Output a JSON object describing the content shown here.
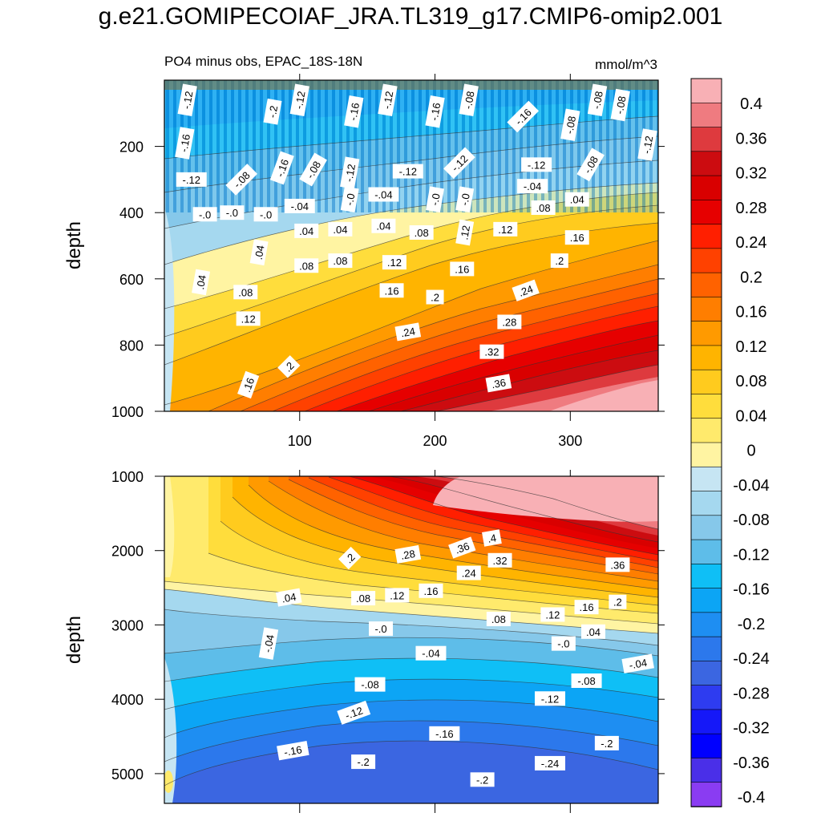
{
  "title": "g.e21.GOMIPECOIAF_JRA.TL319_g17.CMIP6-omip2.001",
  "chart_data": [
    {
      "type": "heatmap",
      "panel": "upper",
      "title": "PO4 minus obs, EPAC_18S-18N",
      "units": "mmol/m^3",
      "xlabel": "",
      "ylabel": "depth",
      "xlim": [
        0,
        365
      ],
      "ylim": [
        1000,
        0
      ],
      "xticks": [
        100,
        200,
        300
      ],
      "yticks": [
        200,
        400,
        600,
        800,
        1000
      ],
      "contour_labels": [
        {
          "x": 17,
          "y": 60,
          "t": "-.12",
          "r": 80
        },
        {
          "x": 80,
          "y": 95,
          "t": "-.2",
          "r": 80
        },
        {
          "x": 100,
          "y": 60,
          "t": "-.12",
          "r": 80
        },
        {
          "x": 140,
          "y": 95,
          "t": "-.16",
          "r": 80
        },
        {
          "x": 165,
          "y": 60,
          "t": "-.12",
          "r": 80
        },
        {
          "x": 200,
          "y": 95,
          "t": "-.16",
          "r": 80
        },
        {
          "x": 225,
          "y": 60,
          "t": "-.08",
          "r": 80
        },
        {
          "x": 265,
          "y": 110,
          "t": "-.16",
          "r": 45
        },
        {
          "x": 300,
          "y": 135,
          "t": "-.08",
          "r": 80
        },
        {
          "x": 320,
          "y": 60,
          "t": "-.08",
          "r": 80
        },
        {
          "x": 337,
          "y": 75,
          "t": "-.08",
          "r": 80
        },
        {
          "x": 357,
          "y": 195,
          "t": "-.12",
          "r": 80
        },
        {
          "x": 15,
          "y": 190,
          "t": "-.16",
          "r": 80
        },
        {
          "x": 20,
          "y": 300,
          "t": "-.12",
          "r": 0
        },
        {
          "x": 57,
          "y": 300,
          "t": "-.08",
          "r": 45
        },
        {
          "x": 87,
          "y": 265,
          "t": "-.16",
          "r": 70
        },
        {
          "x": 110,
          "y": 270,
          "t": "-.08",
          "r": 60
        },
        {
          "x": 137,
          "y": 280,
          "t": "-.12",
          "r": 80
        },
        {
          "x": 180,
          "y": 275,
          "t": "-.12",
          "r": 0
        },
        {
          "x": 218,
          "y": 250,
          "t": "-.12",
          "r": 45
        },
        {
          "x": 275,
          "y": 255,
          "t": "-.12",
          "r": 0
        },
        {
          "x": 315,
          "y": 255,
          "t": "-.08",
          "r": 60
        },
        {
          "x": 272,
          "y": 320,
          "t": "-.04",
          "r": 0
        },
        {
          "x": 30,
          "y": 405,
          "t": "-.0",
          "r": 0
        },
        {
          "x": 50,
          "y": 400,
          "t": "-.0",
          "r": 0
        },
        {
          "x": 75,
          "y": 405,
          "t": "-.0",
          "r": 0
        },
        {
          "x": 100,
          "y": 380,
          "t": "-.04",
          "r": 0
        },
        {
          "x": 137,
          "y": 360,
          "t": "-.0",
          "r": 80
        },
        {
          "x": 162,
          "y": 345,
          "t": "-.04",
          "r": 0
        },
        {
          "x": 200,
          "y": 360,
          "t": "-.0",
          "r": 80
        },
        {
          "x": 222,
          "y": 360,
          "t": "-.0",
          "r": 80
        },
        {
          "x": 280,
          "y": 385,
          "t": ".08",
          "r": 0
        },
        {
          "x": 305,
          "y": 360,
          "t": ".04",
          "r": 0
        },
        {
          "x": 105,
          "y": 455,
          "t": ".04",
          "r": 0
        },
        {
          "x": 130,
          "y": 450,
          "t": ".04",
          "r": 0
        },
        {
          "x": 162,
          "y": 440,
          "t": ".04",
          "r": 0
        },
        {
          "x": 190,
          "y": 460,
          "t": ".08",
          "r": 0
        },
        {
          "x": 222,
          "y": 460,
          "t": ".12",
          "r": 80
        },
        {
          "x": 252,
          "y": 450,
          "t": ".12",
          "r": 0
        },
        {
          "x": 305,
          "y": 475,
          "t": ".16",
          "r": 0
        },
        {
          "x": 70,
          "y": 520,
          "t": ".04",
          "r": 80
        },
        {
          "x": 105,
          "y": 560,
          "t": ".08",
          "r": 0
        },
        {
          "x": 130,
          "y": 545,
          "t": ".08",
          "r": 0
        },
        {
          "x": 170,
          "y": 550,
          "t": ".12",
          "r": 0
        },
        {
          "x": 220,
          "y": 570,
          "t": ".16",
          "r": 0
        },
        {
          "x": 292,
          "y": 545,
          "t": ".2",
          "r": 0
        },
        {
          "x": 27,
          "y": 610,
          "t": ".04",
          "r": 80
        },
        {
          "x": 60,
          "y": 640,
          "t": ".08",
          "r": 0
        },
        {
          "x": 168,
          "y": 635,
          "t": ".16",
          "r": 0
        },
        {
          "x": 200,
          "y": 655,
          "t": ".2",
          "r": 0
        },
        {
          "x": 267,
          "y": 635,
          "t": ".24",
          "r": 20
        },
        {
          "x": 62,
          "y": 720,
          "t": ".12",
          "r": 0
        },
        {
          "x": 180,
          "y": 760,
          "t": ".24",
          "r": 10
        },
        {
          "x": 255,
          "y": 730,
          "t": ".28",
          "r": 0
        },
        {
          "x": 242,
          "y": 820,
          "t": ".32",
          "r": 0
        },
        {
          "x": 92,
          "y": 865,
          "t": ".2",
          "r": 45
        },
        {
          "x": 62,
          "y": 920,
          "t": ".16",
          "r": 70
        },
        {
          "x": 247,
          "y": 915,
          "t": ".36",
          "r": 10
        }
      ]
    },
    {
      "type": "heatmap",
      "panel": "lower",
      "title": "",
      "units": "",
      "xlabel": "",
      "ylabel": "depth",
      "xlim": [
        0,
        365
      ],
      "ylim": [
        5400,
        1000
      ],
      "xticks": [
        100,
        200,
        300
      ],
      "yticks": [
        1000,
        2000,
        3000,
        4000,
        5000
      ],
      "contour_labels": [
        {
          "x": 137,
          "y": 2100,
          "t": ".2",
          "r": 45
        },
        {
          "x": 180,
          "y": 2050,
          "t": ".28",
          "r": 10
        },
        {
          "x": 220,
          "y": 1960,
          "t": ".36",
          "r": 20
        },
        {
          "x": 242,
          "y": 1830,
          "t": ".4",
          "r": 10
        },
        {
          "x": 248,
          "y": 2130,
          "t": ".32",
          "r": 0
        },
        {
          "x": 225,
          "y": 2300,
          "t": ".24",
          "r": 0
        },
        {
          "x": 335,
          "y": 2190,
          "t": ".36",
          "r": 0
        },
        {
          "x": 92,
          "y": 2630,
          "t": ".04",
          "r": 10
        },
        {
          "x": 147,
          "y": 2640,
          "t": ".08",
          "r": 0
        },
        {
          "x": 172,
          "y": 2600,
          "t": ".12",
          "r": 0
        },
        {
          "x": 197,
          "y": 2540,
          "t": ".16",
          "r": 0
        },
        {
          "x": 247,
          "y": 2920,
          "t": ".08",
          "r": 0
        },
        {
          "x": 287,
          "y": 2860,
          "t": ".12",
          "r": 0
        },
        {
          "x": 312,
          "y": 2760,
          "t": ".16",
          "r": 0
        },
        {
          "x": 335,
          "y": 2690,
          "t": ".2",
          "r": 0
        },
        {
          "x": 317,
          "y": 3090,
          "t": ".04",
          "r": 0
        },
        {
          "x": 160,
          "y": 3050,
          "t": "-.0",
          "r": 0
        },
        {
          "x": 295,
          "y": 3250,
          "t": "-.0",
          "r": 0
        },
        {
          "x": 77,
          "y": 3250,
          "t": "-.04",
          "r": 80
        },
        {
          "x": 197,
          "y": 3380,
          "t": "-.04",
          "r": 0
        },
        {
          "x": 350,
          "y": 3520,
          "t": "-.04",
          "r": 10
        },
        {
          "x": 152,
          "y": 3800,
          "t": "-.08",
          "r": 0
        },
        {
          "x": 312,
          "y": 3750,
          "t": "-.08",
          "r": 0
        },
        {
          "x": 140,
          "y": 4180,
          "t": "-.12",
          "r": 20
        },
        {
          "x": 285,
          "y": 3990,
          "t": "-.12",
          "r": 0
        },
        {
          "x": 207,
          "y": 4460,
          "t": "-.16",
          "r": 0
        },
        {
          "x": 95,
          "y": 4690,
          "t": "-.16",
          "r": 10
        },
        {
          "x": 147,
          "y": 4840,
          "t": "-.2",
          "r": 0
        },
        {
          "x": 327,
          "y": 4590,
          "t": "-.2",
          "r": 0
        },
        {
          "x": 285,
          "y": 4860,
          "t": "-.24",
          "r": 0
        },
        {
          "x": 235,
          "y": 5080,
          "t": "-.2",
          "r": 0
        }
      ]
    }
  ],
  "colorbar": {
    "levels": [
      "0.4",
      "0.36",
      "0.32",
      "0.28",
      "0.24",
      "0.2",
      "0.16",
      "0.12",
      "0.08",
      "0.04",
      "0",
      "-0.04",
      "-0.08",
      "-0.12",
      "-0.16",
      "-0.2",
      "-0.24",
      "-0.28",
      "-0.32",
      "-0.36",
      "-0.4"
    ],
    "colors": [
      "#f8b0b5",
      "#ef7b80",
      "#de3a3e",
      "#cc0c10",
      "#d90000",
      "#e60000",
      "#ff1f00",
      "#ff4100",
      "#ff6200",
      "#ff7e00",
      "#ff9a00",
      "#ffb400",
      "#ffcb1e",
      "#ffdd3c",
      "#ffea6c",
      "#fff4a2",
      "#c6e5f3",
      "#a5d8ef",
      "#86c8ea",
      "#5ebde9",
      "#0fbff6",
      "#0ca5f5",
      "#1e8ef2",
      "#2c78ec",
      "#3b66e1",
      "#2e3cf0",
      "#1518f8",
      "#0000ff",
      "#4a2fe8",
      "#8a3cf2"
    ]
  }
}
